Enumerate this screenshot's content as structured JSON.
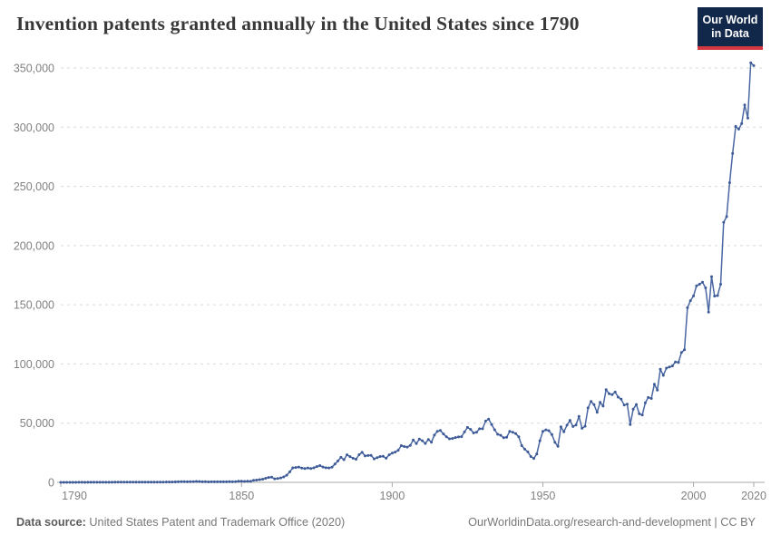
{
  "header": {
    "title": "Invention patents granted annually in the United States since 1790",
    "logo": {
      "line1": "Our World",
      "line2": "in Data"
    }
  },
  "footer": {
    "datasource_label": "Data source:",
    "datasource_text": "United States Patent and Trademark Office (2020)",
    "credit": "OurWorldinData.org/research-and-development | CC BY"
  },
  "colors": {
    "line": "#4a67a3",
    "marker": "#3d5a96",
    "grid": "#dadada",
    "axis": "#a8a8a8",
    "tick_text": "#818181",
    "title_text": "#383838",
    "footer_text": "#777777",
    "logo_bg": "#12284b",
    "logo_red": "#d2383f"
  },
  "chart_data": {
    "type": "line",
    "title": "Invention patents granted annually in the United States since 1790",
    "xlabel": "",
    "ylabel": "",
    "xlim": [
      1790,
      2020
    ],
    "ylim": [
      0,
      350000
    ],
    "xticks": [
      1790,
      1850,
      1900,
      1950,
      2000,
      2020
    ],
    "yticks": [
      0,
      50000,
      100000,
      150000,
      200000,
      250000,
      300000,
      350000
    ],
    "grid": "horizontal-dashed",
    "legend": "none",
    "x": [
      1790,
      1791,
      1792,
      1793,
      1794,
      1795,
      1796,
      1797,
      1798,
      1799,
      1800,
      1801,
      1802,
      1803,
      1804,
      1805,
      1806,
      1807,
      1808,
      1809,
      1810,
      1811,
      1812,
      1813,
      1814,
      1815,
      1816,
      1817,
      1818,
      1819,
      1820,
      1821,
      1822,
      1823,
      1824,
      1825,
      1826,
      1827,
      1828,
      1829,
      1830,
      1831,
      1832,
      1833,
      1834,
      1835,
      1836,
      1837,
      1838,
      1839,
      1840,
      1841,
      1842,
      1843,
      1844,
      1845,
      1846,
      1847,
      1848,
      1849,
      1850,
      1851,
      1852,
      1853,
      1854,
      1855,
      1856,
      1857,
      1858,
      1859,
      1860,
      1861,
      1862,
      1863,
      1864,
      1865,
      1866,
      1867,
      1868,
      1869,
      1870,
      1871,
      1872,
      1873,
      1874,
      1875,
      1876,
      1877,
      1878,
      1879,
      1880,
      1881,
      1882,
      1883,
      1884,
      1885,
      1886,
      1887,
      1888,
      1889,
      1890,
      1891,
      1892,
      1893,
      1894,
      1895,
      1896,
      1897,
      1898,
      1899,
      1900,
      1901,
      1902,
      1903,
      1904,
      1905,
      1906,
      1907,
      1908,
      1909,
      1910,
      1911,
      1912,
      1913,
      1914,
      1915,
      1916,
      1917,
      1918,
      1919,
      1920,
      1921,
      1922,
      1923,
      1924,
      1925,
      1926,
      1927,
      1928,
      1929,
      1930,
      1931,
      1932,
      1933,
      1934,
      1935,
      1936,
      1937,
      1938,
      1939,
      1940,
      1941,
      1942,
      1943,
      1944,
      1945,
      1946,
      1947,
      1948,
      1949,
      1950,
      1951,
      1952,
      1953,
      1954,
      1955,
      1956,
      1957,
      1958,
      1959,
      1960,
      1961,
      1962,
      1963,
      1964,
      1965,
      1966,
      1967,
      1968,
      1969,
      1970,
      1971,
      1972,
      1973,
      1974,
      1975,
      1976,
      1977,
      1978,
      1979,
      1980,
      1981,
      1982,
      1983,
      1984,
      1985,
      1986,
      1987,
      1988,
      1989,
      1990,
      1991,
      1992,
      1993,
      1994,
      1995,
      1996,
      1997,
      1998,
      1999,
      2000,
      2001,
      2002,
      2003,
      2004,
      2005,
      2006,
      2007,
      2008,
      2009,
      2010,
      2011,
      2012,
      2013,
      2014,
      2015,
      2016,
      2017,
      2018,
      2019,
      2020
    ],
    "values": [
      3,
      33,
      11,
      20,
      22,
      12,
      44,
      51,
      28,
      44,
      41,
      44,
      65,
      97,
      84,
      57,
      63,
      99,
      158,
      203,
      223,
      215,
      238,
      181,
      210,
      173,
      206,
      174,
      222,
      156,
      155,
      168,
      200,
      173,
      228,
      304,
      323,
      331,
      368,
      447,
      544,
      573,
      474,
      586,
      630,
      752,
      702,
      426,
      514,
      404,
      458,
      490,
      488,
      493,
      478,
      473,
      566,
      495,
      583,
      984,
      883,
      752,
      885,
      844,
      1755,
      1881,
      2302,
      2674,
      3455,
      4160,
      4357,
      3020,
      3214,
      3773,
      4630,
      6088,
      8863,
      12277,
      12526,
      12931,
      12137,
      11659,
      12180,
      11616,
      12230,
      13291,
      14169,
      12920,
      12345,
      12165,
      12903,
      15500,
      18091,
      21162,
      19118,
      23285,
      21767,
      20403,
      19551,
      23324,
      25313,
      22312,
      22647,
      22750,
      19855,
      20856,
      21822,
      22067,
      20377,
      23278,
      24644,
      25546,
      27119,
      31029,
      30258,
      29775,
      31170,
      35859,
      32735,
      36561,
      35141,
      32856,
      36198,
      33917,
      39892,
      43118,
      43892,
      40935,
      38452,
      36797,
      37060,
      37798,
      38369,
      38616,
      42584,
      46432,
      44733,
      41717,
      42357,
      45267,
      45226,
      51756,
      53458,
      48774,
      44420,
      40618,
      39782,
      37683,
      38061,
      43073,
      42238,
      41109,
      38449,
      31054,
      28053,
      25695,
      21803,
      20191,
      23963,
      35131,
      43040,
      44326,
      43616,
      40468,
      33809,
      30432,
      46918,
      42744,
      48330,
      52408,
      47170,
      48368,
      55691,
      45679,
      47376,
      62857,
      68406,
      65652,
      59104,
      67559,
      64427,
      78317,
      74810,
      74143,
      76278,
      71994,
      70226,
      65269,
      66102,
      48854,
      61819,
      65771,
      57888,
      56860,
      67200,
      71661,
      70860,
      82952,
      77924,
      95537,
      90365,
      96511,
      97444,
      98342,
      101676,
      101419,
      109645,
      111983,
      147517,
      153485,
      157494,
      166035,
      167331,
      169023,
      164290,
      143806,
      173772,
      157282,
      157772,
      167349,
      219614,
      224505,
      253155,
      277835,
      300678,
      298407,
      303049,
      318829,
      307759,
      354430,
      352013
    ]
  }
}
